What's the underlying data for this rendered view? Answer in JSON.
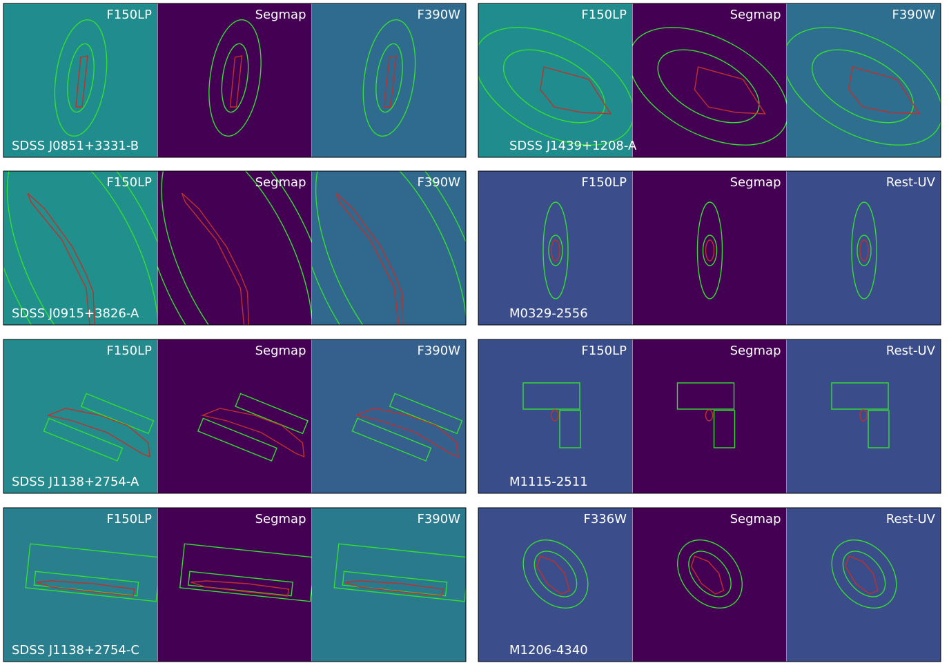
{
  "blocks": [
    {
      "name": "SDSS J0851+3331-B",
      "panels": [
        "F150LP",
        "Segmap",
        "F390W"
      ]
    },
    {
      "name": "SDSS J1439+1208-A",
      "panels": [
        "F150LP",
        "Segmap",
        "F390W"
      ]
    },
    {
      "name": "SDSS J0915+3826-A",
      "panels": [
        "F150LP",
        "Segmap",
        "F390W"
      ]
    },
    {
      "name": "M0329-2556",
      "panels": [
        "F150LP",
        "Segmap",
        "Rest-UV"
      ]
    },
    {
      "name": "SDSS J1138+2754-A",
      "panels": [
        "F150LP",
        "Segmap",
        "F390W"
      ]
    },
    {
      "name": "M1115-2511",
      "panels": [
        "F150LP",
        "Segmap",
        "Rest-UV"
      ]
    },
    {
      "name": "SDSS J1138+2754-C",
      "panels": [
        "F150LP",
        "Segmap",
        "F390W"
      ]
    },
    {
      "name": "M1206-4340",
      "panels": [
        "F336W",
        "Segmap",
        "Rest-UV"
      ]
    }
  ]
}
